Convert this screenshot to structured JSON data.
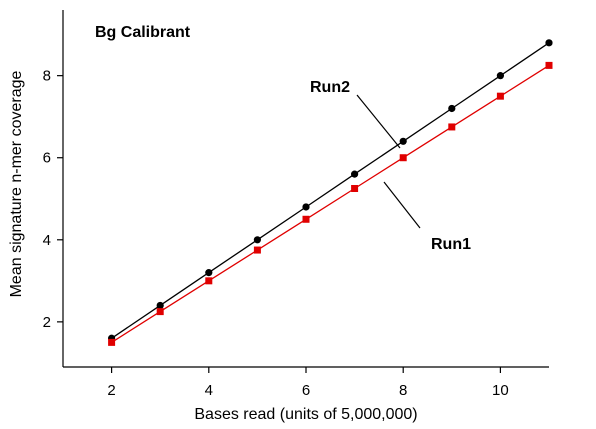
{
  "chart_data": {
    "type": "line",
    "title": "Bg Calibrant",
    "xlabel": "Bases read (units of 5,000,000)",
    "ylabel": "Mean signature n-mer coverage",
    "xlim": [
      1.0,
      11.0
    ],
    "ylim": [
      0.9,
      9.6
    ],
    "xticks": [
      2,
      4,
      6,
      8,
      10
    ],
    "yticks": [
      2,
      4,
      6,
      8
    ],
    "x": [
      2,
      3,
      4,
      5,
      6,
      7,
      8,
      9,
      10,
      11
    ],
    "series": [
      {
        "name": "Run2",
        "color": "#000000",
        "marker": "circle",
        "values": [
          1.6,
          2.4,
          3.2,
          4.0,
          4.8,
          5.6,
          6.4,
          7.2,
          8.0,
          8.8
        ]
      },
      {
        "name": "Run1",
        "color": "#e00000",
        "marker": "square",
        "values": [
          1.5,
          2.25,
          3.0,
          3.75,
          4.5,
          5.25,
          6.0,
          6.75,
          7.5,
          8.25
        ]
      }
    ],
    "grid": false,
    "legend": "inline labels with leader lines"
  }
}
